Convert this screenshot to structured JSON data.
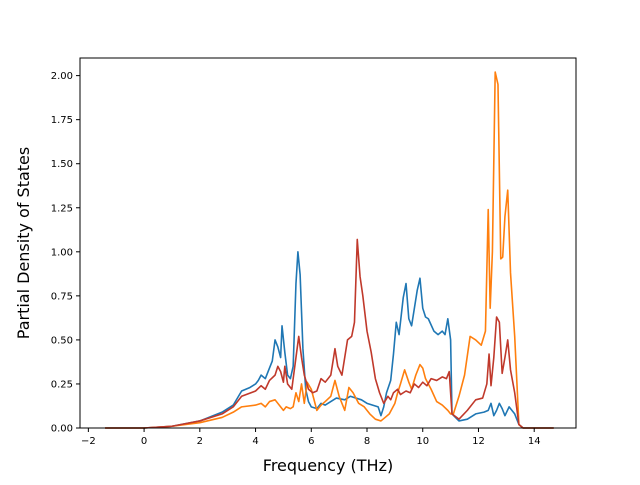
{
  "chart_data": {
    "type": "line",
    "title": "",
    "xlabel": "Frequency (THz)",
    "ylabel": "Partial Density of States",
    "xlim": [
      -2.3,
      15.5
    ],
    "ylim": [
      0.0,
      2.1
    ],
    "xticks": [
      -2,
      0,
      2,
      4,
      6,
      8,
      10,
      12,
      14
    ],
    "xtick_labels": [
      "−2",
      "0",
      "2",
      "4",
      "6",
      "8",
      "10",
      "12",
      "14"
    ],
    "yticks": [
      0.0,
      0.25,
      0.5,
      0.75,
      1.0,
      1.25,
      1.5,
      1.75,
      2.0
    ],
    "ytick_labels": [
      "0.00",
      "0.25",
      "0.50",
      "0.75",
      "1.00",
      "1.25",
      "1.50",
      "1.75",
      "2.00"
    ],
    "grid": false,
    "legend": null,
    "series": [
      {
        "color": "#1f77b4",
        "points": [
          [
            -1.4,
            0.0
          ],
          [
            0.0,
            0.0
          ],
          [
            1.0,
            0.01
          ],
          [
            2.0,
            0.04
          ],
          [
            2.8,
            0.09
          ],
          [
            3.2,
            0.13
          ],
          [
            3.5,
            0.21
          ],
          [
            3.8,
            0.23
          ],
          [
            4.0,
            0.25
          ],
          [
            4.1,
            0.27
          ],
          [
            4.2,
            0.3
          ],
          [
            4.35,
            0.28
          ],
          [
            4.5,
            0.34
          ],
          [
            4.6,
            0.38
          ],
          [
            4.7,
            0.5
          ],
          [
            4.8,
            0.46
          ],
          [
            4.9,
            0.4
          ],
          [
            4.95,
            0.58
          ],
          [
            5.05,
            0.43
          ],
          [
            5.15,
            0.3
          ],
          [
            5.25,
            0.28
          ],
          [
            5.35,
            0.35
          ],
          [
            5.45,
            0.82
          ],
          [
            5.52,
            1.0
          ],
          [
            5.6,
            0.87
          ],
          [
            5.7,
            0.45
          ],
          [
            5.8,
            0.22
          ],
          [
            5.9,
            0.15
          ],
          [
            6.0,
            0.12
          ],
          [
            6.2,
            0.11
          ],
          [
            6.35,
            0.14
          ],
          [
            6.5,
            0.13
          ],
          [
            6.7,
            0.15
          ],
          [
            6.9,
            0.17
          ],
          [
            7.2,
            0.16
          ],
          [
            7.4,
            0.18
          ],
          [
            7.6,
            0.17
          ],
          [
            7.8,
            0.16
          ],
          [
            8.0,
            0.14
          ],
          [
            8.2,
            0.13
          ],
          [
            8.4,
            0.12
          ],
          [
            8.5,
            0.07
          ],
          [
            8.6,
            0.12
          ],
          [
            8.7,
            0.2
          ],
          [
            8.85,
            0.27
          ],
          [
            8.95,
            0.42
          ],
          [
            9.05,
            0.6
          ],
          [
            9.15,
            0.53
          ],
          [
            9.3,
            0.74
          ],
          [
            9.4,
            0.82
          ],
          [
            9.5,
            0.62
          ],
          [
            9.6,
            0.58
          ],
          [
            9.7,
            0.68
          ],
          [
            9.8,
            0.78
          ],
          [
            9.9,
            0.85
          ],
          [
            10.0,
            0.68
          ],
          [
            10.1,
            0.63
          ],
          [
            10.2,
            0.62
          ],
          [
            10.4,
            0.55
          ],
          [
            10.55,
            0.53
          ],
          [
            10.7,
            0.55
          ],
          [
            10.8,
            0.53
          ],
          [
            10.9,
            0.62
          ],
          [
            11.0,
            0.5
          ],
          [
            11.05,
            0.08
          ],
          [
            11.3,
            0.04
          ],
          [
            11.6,
            0.05
          ],
          [
            11.9,
            0.08
          ],
          [
            12.2,
            0.09
          ],
          [
            12.35,
            0.1
          ],
          [
            12.45,
            0.14
          ],
          [
            12.55,
            0.07
          ],
          [
            12.65,
            0.1
          ],
          [
            12.75,
            0.14
          ],
          [
            12.85,
            0.11
          ],
          [
            12.95,
            0.07
          ],
          [
            13.1,
            0.12
          ],
          [
            13.3,
            0.08
          ],
          [
            13.45,
            0.02
          ],
          [
            13.6,
            0.0
          ],
          [
            14.7,
            0.0
          ]
        ]
      },
      {
        "color": "#ff7f0e",
        "points": [
          [
            -1.4,
            0.0
          ],
          [
            0.0,
            0.0
          ],
          [
            1.0,
            0.01
          ],
          [
            2.0,
            0.03
          ],
          [
            2.8,
            0.06
          ],
          [
            3.2,
            0.09
          ],
          [
            3.5,
            0.12
          ],
          [
            4.0,
            0.13
          ],
          [
            4.2,
            0.14
          ],
          [
            4.35,
            0.12
          ],
          [
            4.5,
            0.15
          ],
          [
            4.7,
            0.16
          ],
          [
            4.9,
            0.12
          ],
          [
            5.0,
            0.1
          ],
          [
            5.1,
            0.12
          ],
          [
            5.25,
            0.11
          ],
          [
            5.35,
            0.12
          ],
          [
            5.45,
            0.2
          ],
          [
            5.55,
            0.15
          ],
          [
            5.65,
            0.25
          ],
          [
            5.75,
            0.14
          ],
          [
            5.85,
            0.26
          ],
          [
            6.0,
            0.22
          ],
          [
            6.2,
            0.1
          ],
          [
            6.35,
            0.13
          ],
          [
            6.5,
            0.15
          ],
          [
            6.7,
            0.18
          ],
          [
            6.85,
            0.27
          ],
          [
            7.0,
            0.18
          ],
          [
            7.2,
            0.1
          ],
          [
            7.35,
            0.23
          ],
          [
            7.5,
            0.2
          ],
          [
            7.7,
            0.14
          ],
          [
            7.9,
            0.12
          ],
          [
            8.1,
            0.08
          ],
          [
            8.3,
            0.05
          ],
          [
            8.5,
            0.04
          ],
          [
            8.65,
            0.06
          ],
          [
            8.8,
            0.08
          ],
          [
            9.0,
            0.14
          ],
          [
            9.1,
            0.2
          ],
          [
            9.2,
            0.25
          ],
          [
            9.35,
            0.33
          ],
          [
            9.5,
            0.26
          ],
          [
            9.6,
            0.22
          ],
          [
            9.75,
            0.3
          ],
          [
            9.9,
            0.36
          ],
          [
            10.0,
            0.34
          ],
          [
            10.1,
            0.28
          ],
          [
            10.3,
            0.22
          ],
          [
            10.5,
            0.15
          ],
          [
            10.7,
            0.13
          ],
          [
            10.9,
            0.1
          ],
          [
            11.0,
            0.08
          ],
          [
            11.1,
            0.08
          ],
          [
            11.3,
            0.18
          ],
          [
            11.5,
            0.3
          ],
          [
            11.7,
            0.52
          ],
          [
            11.9,
            0.5
          ],
          [
            12.1,
            0.47
          ],
          [
            12.25,
            0.55
          ],
          [
            12.35,
            1.24
          ],
          [
            12.42,
            0.68
          ],
          [
            12.5,
            1.0
          ],
          [
            12.6,
            2.02
          ],
          [
            12.7,
            1.95
          ],
          [
            12.8,
            0.96
          ],
          [
            12.87,
            0.97
          ],
          [
            12.95,
            1.2
          ],
          [
            13.05,
            1.35
          ],
          [
            13.15,
            0.88
          ],
          [
            13.3,
            0.52
          ],
          [
            13.45,
            0.02
          ],
          [
            13.6,
            0.0
          ],
          [
            14.7,
            0.0
          ]
        ]
      },
      {
        "color": "#c0392b",
        "points": [
          [
            -1.4,
            0.0
          ],
          [
            0.0,
            0.0
          ],
          [
            1.0,
            0.01
          ],
          [
            2.0,
            0.04
          ],
          [
            2.8,
            0.08
          ],
          [
            3.2,
            0.12
          ],
          [
            3.5,
            0.18
          ],
          [
            4.0,
            0.21
          ],
          [
            4.2,
            0.24
          ],
          [
            4.35,
            0.22
          ],
          [
            4.5,
            0.27
          ],
          [
            4.7,
            0.3
          ],
          [
            4.8,
            0.35
          ],
          [
            4.9,
            0.32
          ],
          [
            5.0,
            0.26
          ],
          [
            5.05,
            0.35
          ],
          [
            5.15,
            0.25
          ],
          [
            5.3,
            0.22
          ],
          [
            5.45,
            0.4
          ],
          [
            5.55,
            0.52
          ],
          [
            5.65,
            0.4
          ],
          [
            5.75,
            0.3
          ],
          [
            5.9,
            0.22
          ],
          [
            6.05,
            0.2
          ],
          [
            6.2,
            0.21
          ],
          [
            6.35,
            0.28
          ],
          [
            6.5,
            0.26
          ],
          [
            6.7,
            0.3
          ],
          [
            6.85,
            0.45
          ],
          [
            6.95,
            0.35
          ],
          [
            7.1,
            0.3
          ],
          [
            7.2,
            0.4
          ],
          [
            7.3,
            0.5
          ],
          [
            7.45,
            0.52
          ],
          [
            7.55,
            0.6
          ],
          [
            7.65,
            1.07
          ],
          [
            7.75,
            0.86
          ],
          [
            7.85,
            0.75
          ],
          [
            8.0,
            0.55
          ],
          [
            8.15,
            0.43
          ],
          [
            8.3,
            0.28
          ],
          [
            8.45,
            0.2
          ],
          [
            8.6,
            0.14
          ],
          [
            8.75,
            0.18
          ],
          [
            8.85,
            0.16
          ],
          [
            8.95,
            0.2
          ],
          [
            9.1,
            0.22
          ],
          [
            9.2,
            0.19
          ],
          [
            9.4,
            0.21
          ],
          [
            9.55,
            0.2
          ],
          [
            9.7,
            0.25
          ],
          [
            9.85,
            0.23
          ],
          [
            10.0,
            0.26
          ],
          [
            10.15,
            0.24
          ],
          [
            10.3,
            0.28
          ],
          [
            10.5,
            0.27
          ],
          [
            10.7,
            0.29
          ],
          [
            10.85,
            0.28
          ],
          [
            10.95,
            0.32
          ],
          [
            11.05,
            0.08
          ],
          [
            11.3,
            0.05
          ],
          [
            11.6,
            0.1
          ],
          [
            11.9,
            0.16
          ],
          [
            12.15,
            0.17
          ],
          [
            12.3,
            0.25
          ],
          [
            12.38,
            0.42
          ],
          [
            12.45,
            0.24
          ],
          [
            12.55,
            0.4
          ],
          [
            12.65,
            0.63
          ],
          [
            12.75,
            0.6
          ],
          [
            12.85,
            0.31
          ],
          [
            12.95,
            0.4
          ],
          [
            13.05,
            0.5
          ],
          [
            13.15,
            0.33
          ],
          [
            13.3,
            0.2
          ],
          [
            13.45,
            0.02
          ],
          [
            13.6,
            0.0
          ],
          [
            14.7,
            0.0
          ]
        ]
      }
    ]
  }
}
